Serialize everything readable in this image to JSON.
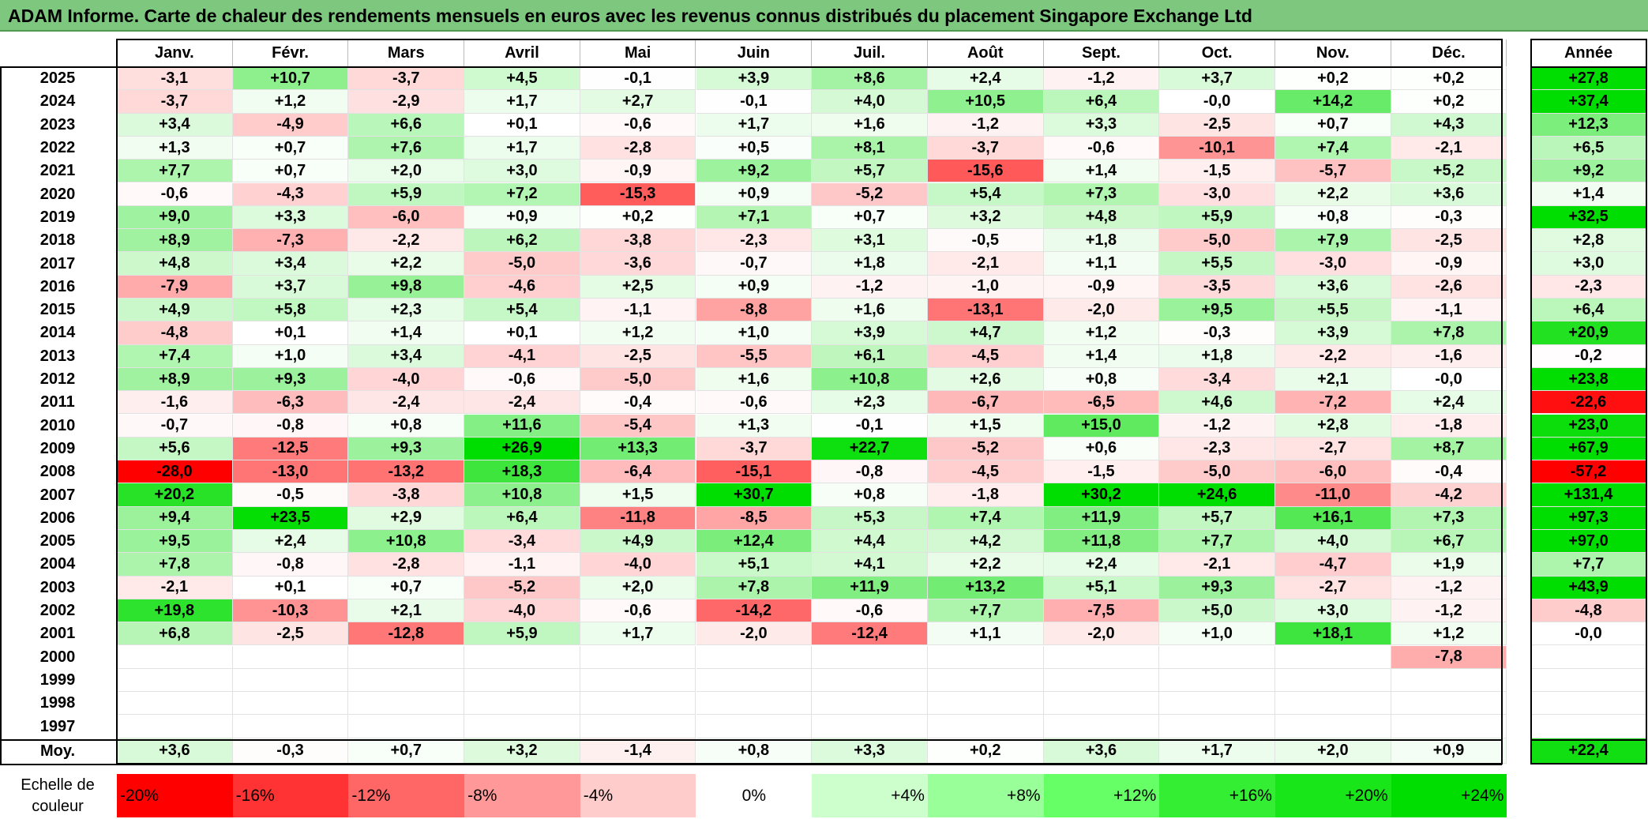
{
  "title": "ADAM Informe. Carte de chaleur des rendements mensuels en euros avec les revenus connus distribués du placement Singapore Exchange Ltd",
  "chart_data": {
    "type": "heatmap",
    "months": [
      "Janv.",
      "Févr.",
      "Mars",
      "Avril",
      "Mai",
      "Juin",
      "Juil.",
      "Août",
      "Sept.",
      "Oct.",
      "Nov.",
      "Déc."
    ],
    "year_header": "Année",
    "rows": [
      {
        "label": "2025",
        "values": [
          "-3,1",
          "+10,7",
          "-3,7",
          "+4,5",
          "-0,1",
          "+3,9",
          "+8,6",
          "+2,4",
          "-1,2",
          "+3,7",
          "+0,2",
          "+0,2"
        ],
        "year": "+27,8"
      },
      {
        "label": "2024",
        "values": [
          "-3,7",
          "+1,2",
          "-2,9",
          "+1,7",
          "+2,7",
          "-0,1",
          "+4,0",
          "+10,5",
          "+6,4",
          "-0,0",
          "+14,2",
          "+0,2"
        ],
        "year": "+37,4"
      },
      {
        "label": "2023",
        "values": [
          "+3,4",
          "-4,9",
          "+6,6",
          "+0,1",
          "-0,6",
          "+1,7",
          "+1,6",
          "-1,2",
          "+3,3",
          "-2,5",
          "+0,7",
          "+4,3"
        ],
        "year": "+12,3"
      },
      {
        "label": "2022",
        "values": [
          "+1,3",
          "+0,7",
          "+7,6",
          "+1,7",
          "-2,8",
          "+0,5",
          "+8,1",
          "-3,7",
          "-0,6",
          "-10,1",
          "+7,4",
          "-2,1"
        ],
        "year": "+6,5"
      },
      {
        "label": "2021",
        "values": [
          "+7,7",
          "+0,7",
          "+2,0",
          "+3,0",
          "-0,9",
          "+9,2",
          "+5,7",
          "-15,6",
          "+1,4",
          "-1,5",
          "-5,7",
          "+5,2"
        ],
        "year": "+9,2"
      },
      {
        "label": "2020",
        "values": [
          "-0,6",
          "-4,3",
          "+5,9",
          "+7,2",
          "-15,3",
          "+0,9",
          "-5,2",
          "+5,4",
          "+7,3",
          "-3,0",
          "+2,2",
          "+3,6"
        ],
        "year": "+1,4"
      },
      {
        "label": "2019",
        "values": [
          "+9,0",
          "+3,3",
          "-6,0",
          "+0,9",
          "+0,2",
          "+7,1",
          "+0,7",
          "+3,2",
          "+4,8",
          "+5,9",
          "+0,8",
          "-0,3"
        ],
        "year": "+32,5"
      },
      {
        "label": "2018",
        "values": [
          "+8,9",
          "-7,3",
          "-2,2",
          "+6,2",
          "-3,8",
          "-2,3",
          "+3,1",
          "-0,5",
          "+1,8",
          "-5,0",
          "+7,9",
          "-2,5"
        ],
        "year": "+2,8"
      },
      {
        "label": "2017",
        "values": [
          "+4,8",
          "+3,4",
          "+2,2",
          "-5,0",
          "-3,6",
          "-0,7",
          "+1,8",
          "-2,1",
          "+1,1",
          "+5,5",
          "-3,0",
          "-0,9"
        ],
        "year": "+3,0"
      },
      {
        "label": "2016",
        "values": [
          "-7,9",
          "+3,7",
          "+9,8",
          "-4,6",
          "+2,5",
          "+0,9",
          "-1,2",
          "-1,0",
          "-0,9",
          "-3,5",
          "+3,6",
          "-2,6"
        ],
        "year": "-2,3"
      },
      {
        "label": "2015",
        "values": [
          "+4,9",
          "+5,8",
          "+2,3",
          "+5,4",
          "-1,1",
          "-8,8",
          "+1,6",
          "-13,1",
          "-2,0",
          "+9,5",
          "+5,5",
          "-1,1"
        ],
        "year": "+6,4"
      },
      {
        "label": "2014",
        "values": [
          "-4,8",
          "+0,1",
          "+1,4",
          "+0,1",
          "+1,2",
          "+1,0",
          "+3,9",
          "+4,7",
          "+1,2",
          "-0,3",
          "+3,9",
          "+7,8"
        ],
        "year": "+20,9"
      },
      {
        "label": "2013",
        "values": [
          "+7,4",
          "+1,0",
          "+3,4",
          "-4,1",
          "-2,5",
          "-5,5",
          "+6,1",
          "-4,5",
          "+1,4",
          "+1,8",
          "-2,2",
          "-1,6"
        ],
        "year": "-0,2"
      },
      {
        "label": "2012",
        "values": [
          "+8,9",
          "+9,3",
          "-4,0",
          "-0,6",
          "-5,0",
          "+1,6",
          "+10,8",
          "+2,6",
          "+0,8",
          "-3,4",
          "+2,1",
          "-0,0"
        ],
        "year": "+23,8"
      },
      {
        "label": "2011",
        "values": [
          "-1,6",
          "-6,3",
          "-2,4",
          "-2,4",
          "-0,4",
          "-0,6",
          "+2,3",
          "-6,7",
          "-6,5",
          "+4,6",
          "-7,2",
          "+2,4"
        ],
        "year": "-22,6"
      },
      {
        "label": "2010",
        "values": [
          "-0,7",
          "-0,8",
          "+0,8",
          "+11,6",
          "-5,4",
          "+1,3",
          "-0,1",
          "+1,5",
          "+15,0",
          "-1,2",
          "+2,8",
          "-1,8"
        ],
        "year": "+23,0"
      },
      {
        "label": "2009",
        "values": [
          "+5,6",
          "-12,5",
          "+9,3",
          "+26,9",
          "+13,3",
          "-3,7",
          "+22,7",
          "-5,2",
          "+0,6",
          "-2,3",
          "-2,7",
          "+8,7"
        ],
        "year": "+67,9"
      },
      {
        "label": "2008",
        "values": [
          "-28,0",
          "-13,0",
          "-13,2",
          "+18,3",
          "-6,4",
          "-15,1",
          "-0,8",
          "-4,5",
          "-1,5",
          "-5,0",
          "-6,0",
          "-0,4"
        ],
        "year": "-57,2"
      },
      {
        "label": "2007",
        "values": [
          "+20,2",
          "-0,5",
          "-3,8",
          "+10,8",
          "+1,5",
          "+30,7",
          "+0,8",
          "-1,8",
          "+30,2",
          "+24,6",
          "-11,0",
          "-4,2"
        ],
        "year": "+131,4"
      },
      {
        "label": "2006",
        "values": [
          "+9,4",
          "+23,5",
          "+2,9",
          "+6,4",
          "-11,8",
          "-8,5",
          "+5,3",
          "+7,4",
          "+11,9",
          "+5,7",
          "+16,1",
          "+7,3"
        ],
        "year": "+97,3"
      },
      {
        "label": "2005",
        "values": [
          "+9,5",
          "+2,4",
          "+10,8",
          "-3,4",
          "+4,9",
          "+12,4",
          "+4,4",
          "+4,2",
          "+11,8",
          "+7,7",
          "+4,0",
          "+6,7"
        ],
        "year": "+97,0"
      },
      {
        "label": "2004",
        "values": [
          "+7,8",
          "-0,8",
          "-2,8",
          "-1,1",
          "-4,0",
          "+5,1",
          "+4,1",
          "+2,2",
          "+2,4",
          "-2,1",
          "-4,7",
          "+1,9"
        ],
        "year": "+7,7"
      },
      {
        "label": "2003",
        "values": [
          "-2,1",
          "+0,1",
          "+0,7",
          "-5,2",
          "+2,0",
          "+7,8",
          "+11,9",
          "+13,2",
          "+5,1",
          "+9,3",
          "-2,7",
          "-1,2"
        ],
        "year": "+43,9"
      },
      {
        "label": "2002",
        "values": [
          "+19,8",
          "-10,3",
          "+2,1",
          "-4,0",
          "-0,6",
          "-14,2",
          "-0,6",
          "+7,7",
          "-7,5",
          "+5,0",
          "+3,0",
          "-1,2"
        ],
        "year": "-4,8"
      },
      {
        "label": "2001",
        "values": [
          "+6,8",
          "-2,5",
          "-12,8",
          "+5,9",
          "+1,7",
          "-2,0",
          "-12,4",
          "+1,1",
          "-2,0",
          "+1,0",
          "+18,1",
          "+1,2"
        ],
        "year": "-0,0"
      },
      {
        "label": "2000",
        "values": [
          "",
          "",
          "",
          "",
          "",
          "",
          "",
          "",
          "",
          "",
          "",
          "-7,8"
        ],
        "year": ""
      },
      {
        "label": "1999",
        "values": [
          "",
          "",
          "",
          "",
          "",
          "",
          "",
          "",
          "",
          "",
          "",
          ""
        ],
        "year": ""
      },
      {
        "label": "1998",
        "values": [
          "",
          "",
          "",
          "",
          "",
          "",
          "",
          "",
          "",
          "",
          "",
          ""
        ],
        "year": ""
      },
      {
        "label": "1997",
        "values": [
          "",
          "",
          "",
          "",
          "",
          "",
          "",
          "",
          "",
          "",
          "",
          ""
        ],
        "year": ""
      }
    ],
    "average": {
      "label": "Moy.",
      "values": [
        "+3,6",
        "-0,3",
        "+0,7",
        "+3,2",
        "-1,4",
        "+0,8",
        "+3,3",
        "+0,2",
        "+3,6",
        "+1,7",
        "+2,0",
        "+0,9"
      ],
      "year": "+22,4"
    },
    "scale": {
      "label": "Echelle de couleur",
      "items": [
        {
          "text": "-20%",
          "color": "#ff0000",
          "align": "left"
        },
        {
          "text": "-16%",
          "color": "#ff3333",
          "align": "left"
        },
        {
          "text": "-12%",
          "color": "#ff6666",
          "align": "left"
        },
        {
          "text": "-8%",
          "color": "#ff9999",
          "align": "left"
        },
        {
          "text": "-4%",
          "color": "#ffcccc",
          "align": "left"
        },
        {
          "text": "0%",
          "color": "#ffffff",
          "align": "center"
        },
        {
          "text": "+4%",
          "color": "#ccffcc",
          "align": "right"
        },
        {
          "text": "+8%",
          "color": "#99ff99",
          "align": "right"
        },
        {
          "text": "+12%",
          "color": "#66ff66",
          "align": "right"
        },
        {
          "text": "+16%",
          "color": "#33ee33",
          "align": "right"
        },
        {
          "text": "+20%",
          "color": "#19e619",
          "align": "right"
        },
        {
          "text": "+24%",
          "color": "#00dd00",
          "align": "right"
        }
      ]
    },
    "colors": {
      "negative_max": "#ff0000",
      "zero": "#ffffff",
      "positive_max": "#00dd00",
      "title_bg": "#7dc77f"
    }
  }
}
